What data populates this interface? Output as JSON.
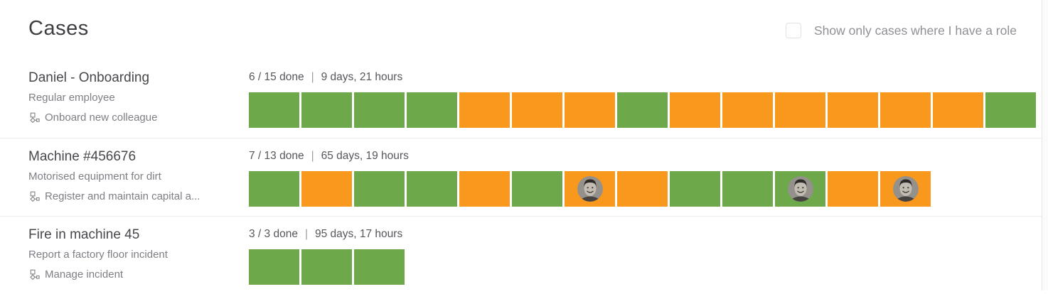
{
  "header": {
    "title": "Cases"
  },
  "filter": {
    "label": "Show only cases where I have a role",
    "checked": false
  },
  "stats_separator": "|",
  "colors": {
    "done": "#6da84a",
    "pending": "#f8981d"
  },
  "icons": {
    "workflow": "workflow-icon",
    "avatar": "user-avatar"
  },
  "cases": [
    {
      "title": "Daniel - Onboarding",
      "subtitle": "Regular employee",
      "workflow": "Onboard new colleague",
      "done_label": "6 / 15 done",
      "duration": "9 days, 21 hours",
      "segments": [
        {
          "status": "done"
        },
        {
          "status": "done"
        },
        {
          "status": "done"
        },
        {
          "status": "done"
        },
        {
          "status": "pending"
        },
        {
          "status": "pending"
        },
        {
          "status": "pending"
        },
        {
          "status": "done"
        },
        {
          "status": "pending"
        },
        {
          "status": "pending"
        },
        {
          "status": "pending"
        },
        {
          "status": "pending"
        },
        {
          "status": "pending"
        },
        {
          "status": "pending"
        },
        {
          "status": "done"
        }
      ]
    },
    {
      "title": "Machine #456676",
      "subtitle": "Motorised equipment for dirt",
      "workflow": "Register and maintain capital a...",
      "done_label": "7 / 13 done",
      "duration": "65 days, 19 hours",
      "segments": [
        {
          "status": "done"
        },
        {
          "status": "pending"
        },
        {
          "status": "done"
        },
        {
          "status": "done"
        },
        {
          "status": "pending"
        },
        {
          "status": "done"
        },
        {
          "status": "pending",
          "avatar": true
        },
        {
          "status": "pending"
        },
        {
          "status": "done"
        },
        {
          "status": "done"
        },
        {
          "status": "done",
          "avatar": true
        },
        {
          "status": "pending"
        },
        {
          "status": "pending",
          "avatar": true
        }
      ]
    },
    {
      "title": "Fire in machine 45",
      "subtitle": "Report a factory floor incident",
      "workflow": "Manage incident",
      "done_label": "3 / 3 done",
      "duration": "95 days, 17 hours",
      "segments": [
        {
          "status": "done"
        },
        {
          "status": "done"
        },
        {
          "status": "done"
        }
      ]
    }
  ]
}
